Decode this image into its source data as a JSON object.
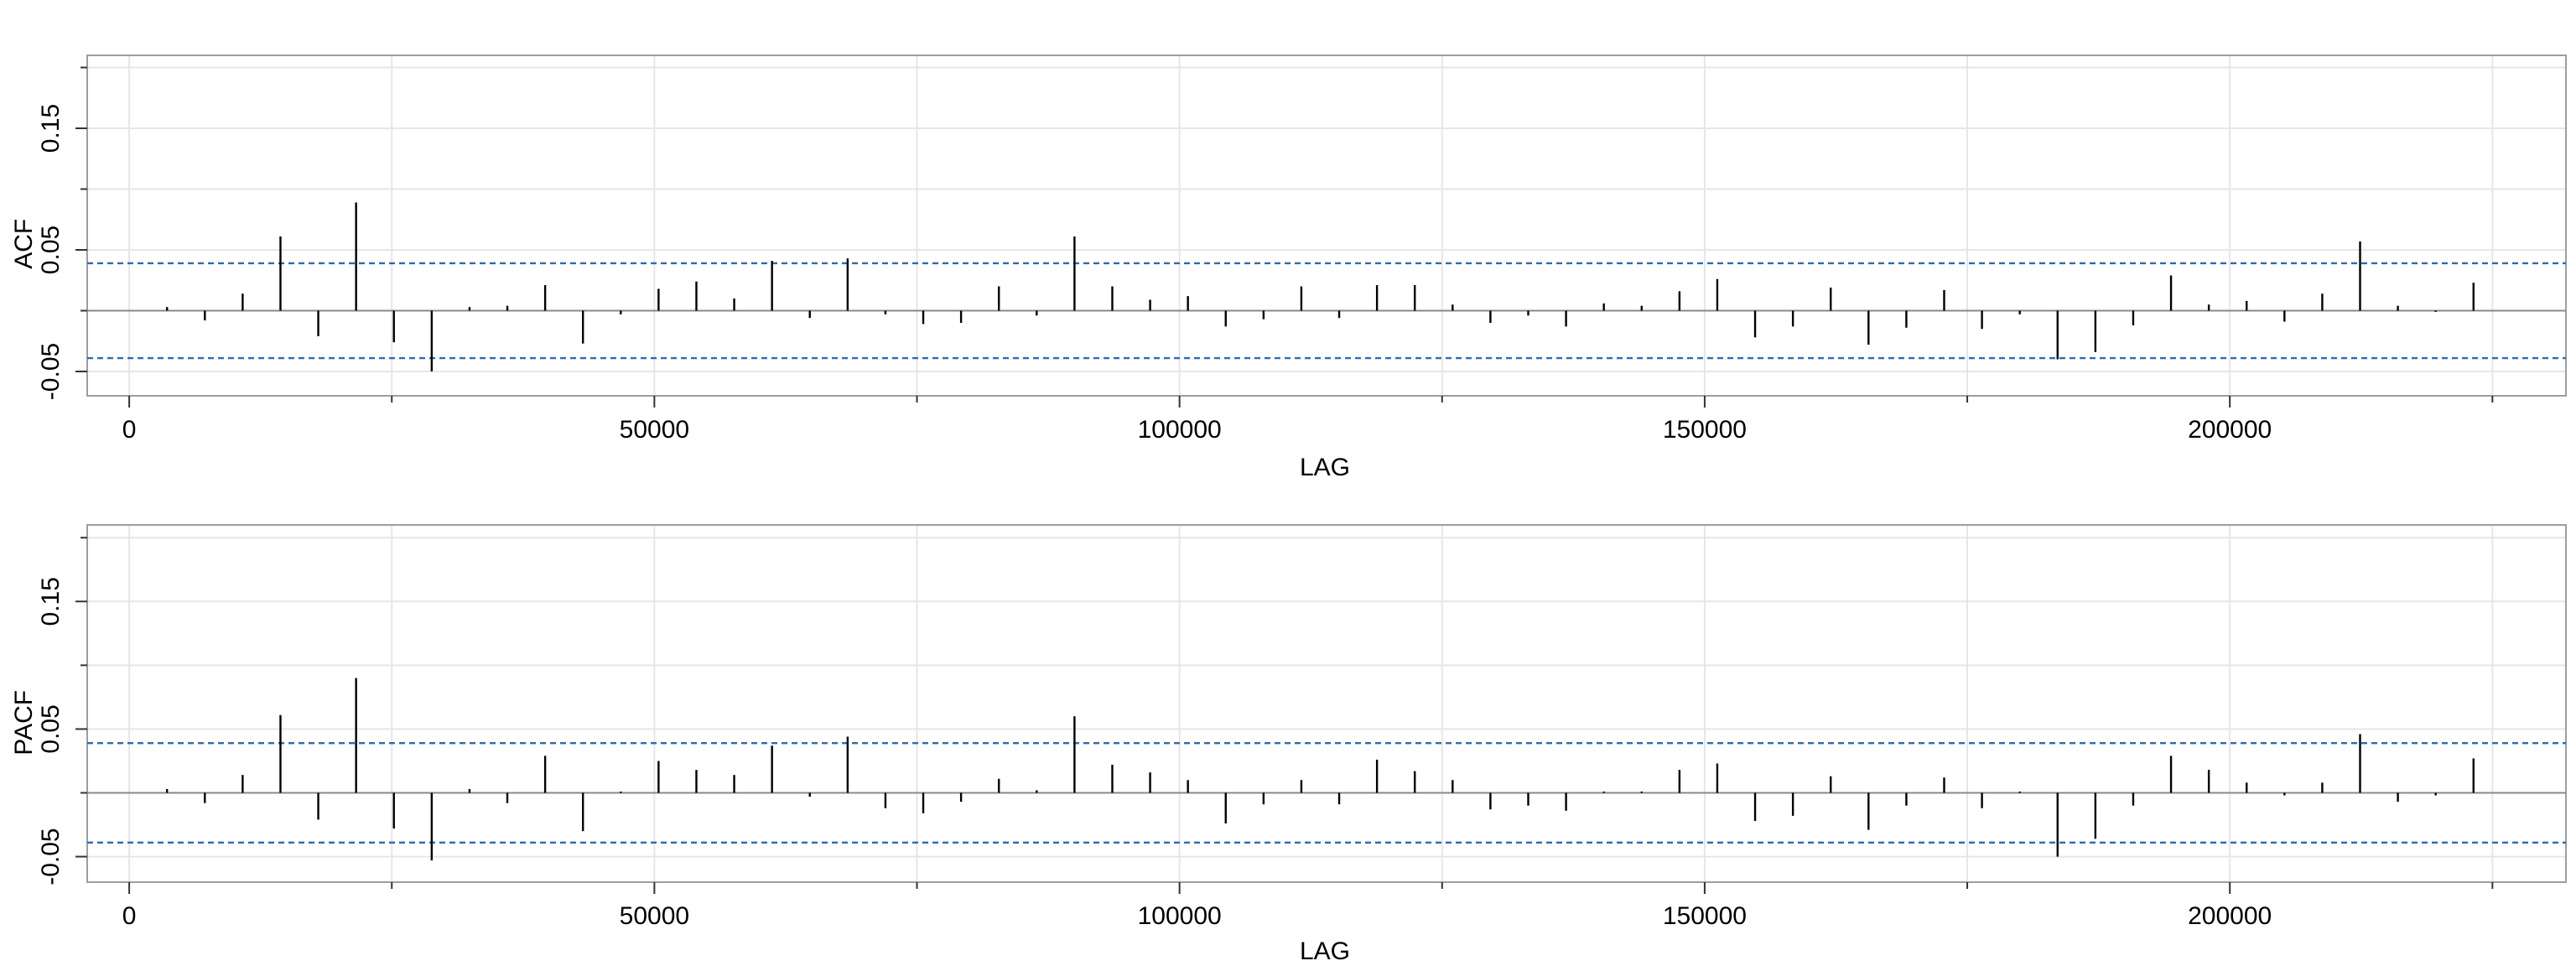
{
  "chart_data": [
    {
      "type": "bar",
      "subtype": "lag-correlation",
      "title": "",
      "xlabel": "LAG",
      "ylabel": "ACF",
      "xlim": [
        -4000,
        232000
      ],
      "ylim": [
        -0.07,
        0.21
      ],
      "xticks": [
        0,
        50000,
        100000,
        150000,
        200000
      ],
      "xtick_labels": [
        "0",
        "50000",
        "100000",
        "150000",
        "200000"
      ],
      "yticks": [
        -0.05,
        0.05,
        0.15
      ],
      "ytick_labels": [
        "-0.05",
        "0.05",
        "0.15"
      ],
      "grid": true,
      "confidence_band": 0.039,
      "lags": [
        3600,
        7200,
        10800,
        14400,
        18000,
        21600,
        25200,
        28800,
        32400,
        36000,
        39600,
        43200,
        46800,
        50400,
        54000,
        57600,
        61200,
        64800,
        68400,
        72000,
        75600,
        79200,
        82800,
        86400,
        90000,
        93600,
        97200,
        100800,
        104400,
        108000,
        111600,
        115200,
        118800,
        122400,
        126000,
        129600,
        133200,
        136800,
        140400,
        144000,
        147600,
        151200,
        154800,
        158400,
        162000,
        165600,
        169200,
        172800,
        176400,
        180000,
        183600,
        187200,
        190800,
        194400,
        198000,
        201600,
        205200,
        208800,
        212400,
        216000,
        219600,
        223200
      ],
      "values": [
        0.003,
        -0.008,
        0.014,
        0.061,
        -0.021,
        0.089,
        -0.026,
        -0.05,
        0.003,
        0.004,
        0.021,
        -0.027,
        -0.003,
        0.018,
        0.024,
        0.01,
        0.041,
        -0.006,
        0.043,
        -0.003,
        -0.011,
        -0.01,
        0.02,
        -0.004,
        0.061,
        0.02,
        0.009,
        0.012,
        -0.013,
        -0.007,
        0.02,
        -0.006,
        0.021,
        0.021,
        0.005,
        -0.01,
        -0.004,
        -0.013,
        0.006,
        0.004,
        0.016,
        0.026,
        -0.022,
        -0.013,
        0.019,
        -0.028,
        -0.014,
        0.017,
        -0.015,
        -0.003,
        -0.04,
        -0.034,
        -0.012,
        0.029,
        0.005,
        0.008,
        -0.009,
        0.014,
        0.057,
        0.004,
        -0.001,
        0.023
      ]
    },
    {
      "type": "bar",
      "subtype": "lag-correlation",
      "title": "",
      "xlabel": "LAG",
      "ylabel": "PACF",
      "xlim": [
        -4000,
        232000
      ],
      "ylim": [
        -0.07,
        0.21
      ],
      "xticks": [
        0,
        50000,
        100000,
        150000,
        200000
      ],
      "xtick_labels": [
        "0",
        "50000",
        "100000",
        "150000",
        "200000"
      ],
      "yticks": [
        -0.05,
        0.05,
        0.15
      ],
      "ytick_labels": [
        "-0.05",
        "0.05",
        "0.15"
      ],
      "grid": true,
      "confidence_band": 0.039,
      "lags": [
        3600,
        7200,
        10800,
        14400,
        18000,
        21600,
        25200,
        28800,
        32400,
        36000,
        39600,
        43200,
        46800,
        50400,
        54000,
        57600,
        61200,
        64800,
        68400,
        72000,
        75600,
        79200,
        82800,
        86400,
        90000,
        93600,
        97200,
        100800,
        104400,
        108000,
        111600,
        115200,
        118800,
        122400,
        126000,
        129600,
        133200,
        136800,
        140400,
        144000,
        147600,
        151200,
        154800,
        158400,
        162000,
        165600,
        169200,
        172800,
        176400,
        180000,
        183600,
        187200,
        190800,
        194400,
        198000,
        201600,
        205200,
        208800,
        212400,
        216000,
        219600,
        223200
      ],
      "values": [
        0.003,
        -0.008,
        0.014,
        0.061,
        -0.021,
        0.09,
        -0.028,
        -0.053,
        0.003,
        -0.008,
        0.029,
        -0.03,
        0.001,
        0.025,
        0.018,
        0.014,
        0.037,
        -0.003,
        0.044,
        -0.012,
        -0.016,
        -0.007,
        0.011,
        0.002,
        0.06,
        0.022,
        0.016,
        0.01,
        -0.024,
        -0.009,
        0.01,
        -0.009,
        0.026,
        0.017,
        0.01,
        -0.013,
        -0.01,
        -0.014,
        0.001,
        0.001,
        0.018,
        0.023,
        -0.022,
        -0.018,
        0.013,
        -0.029,
        -0.01,
        0.012,
        -0.012,
        0.001,
        -0.05,
        -0.036,
        -0.01,
        0.029,
        0.018,
        0.008,
        -0.002,
        0.008,
        0.046,
        -0.007,
        -0.002,
        0.027
      ]
    }
  ]
}
